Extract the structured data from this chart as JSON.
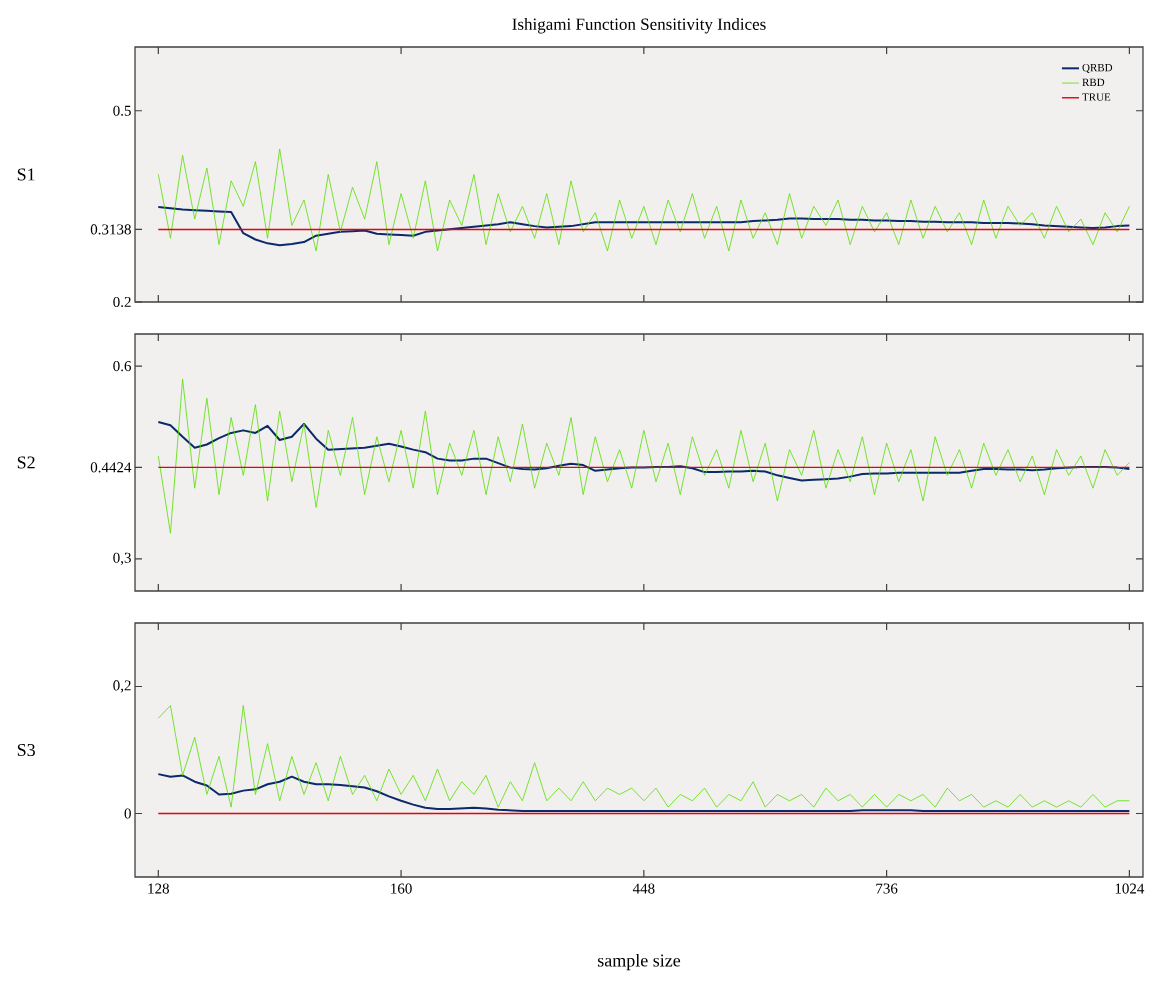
{
  "chart_data": [
    {
      "type": "line",
      "title": "Ishigami Function Sensitivity Indices",
      "ylabel": "S1",
      "categories": [
        "128",
        null,
        null,
        null,
        null,
        null,
        null,
        null,
        null,
        null,
        null,
        null,
        null,
        null,
        null,
        null,
        null,
        null,
        null,
        null,
        "160",
        null,
        null,
        null,
        null,
        null,
        null,
        null,
        null,
        null,
        null,
        null,
        null,
        null,
        null,
        null,
        null,
        null,
        null,
        null,
        "448",
        null,
        null,
        null,
        null,
        null,
        null,
        null,
        null,
        null,
        null,
        null,
        null,
        null,
        null,
        null,
        null,
        null,
        null,
        null,
        "736",
        null,
        null,
        null,
        null,
        null,
        null,
        null,
        null,
        null,
        null,
        null,
        null,
        null,
        null,
        null,
        null,
        null,
        null,
        null,
        "1024"
      ],
      "ylim": [
        0.2,
        0.6
      ],
      "yticks": [
        0.2,
        0.3138,
        0.5
      ],
      "tick_labels": "y",
      "legend": "top right",
      "series": [
        {
          "name": "QRBD",
          "color": "#0b2a6b",
          "values": [
            0.349,
            0.347,
            0.345,
            0.344,
            0.343,
            0.342,
            0.341,
            0.308,
            0.298,
            0.292,
            0.289,
            0.291,
            0.294,
            0.304,
            0.307,
            0.31,
            0.311,
            0.312,
            0.307,
            0.306,
            0.305,
            0.304,
            0.31,
            0.312,
            0.314,
            0.316,
            0.318,
            0.32,
            0.322,
            0.325,
            0.322,
            0.319,
            0.317,
            0.318,
            0.319,
            0.322,
            0.325,
            0.325,
            0.325,
            0.325,
            0.325,
            0.325,
            0.325,
            0.325,
            0.325,
            0.325,
            0.325,
            0.325,
            0.325,
            0.327,
            0.328,
            0.329,
            0.331,
            0.331,
            0.33,
            0.33,
            0.33,
            0.329,
            0.329,
            0.328,
            0.328,
            0.327,
            0.327,
            0.326,
            0.326,
            0.325,
            0.325,
            0.325,
            0.324,
            0.324,
            0.324,
            0.323,
            0.322,
            0.32,
            0.319,
            0.318,
            0.317,
            0.316,
            0.317,
            0.319,
            0.32
          ]
        },
        {
          "name": "RBD",
          "color": "#55e000",
          "values": [
            0.4,
            0.3,
            0.43,
            0.33,
            0.41,
            0.29,
            0.39,
            0.35,
            0.42,
            0.3,
            0.44,
            0.32,
            0.36,
            0.28,
            0.4,
            0.31,
            0.38,
            0.33,
            0.42,
            0.29,
            0.37,
            0.3,
            0.39,
            0.28,
            0.36,
            0.32,
            0.4,
            0.29,
            0.37,
            0.31,
            0.35,
            0.3,
            0.37,
            0.29,
            0.39,
            0.31,
            0.34,
            0.28,
            0.36,
            0.3,
            0.35,
            0.29,
            0.36,
            0.31,
            0.37,
            0.3,
            0.35,
            0.28,
            0.36,
            0.3,
            0.34,
            0.29,
            0.37,
            0.3,
            0.35,
            0.32,
            0.36,
            0.29,
            0.35,
            0.31,
            0.34,
            0.29,
            0.36,
            0.3,
            0.35,
            0.31,
            0.34,
            0.29,
            0.36,
            0.3,
            0.35,
            0.32,
            0.34,
            0.3,
            0.35,
            0.31,
            0.33,
            0.29,
            0.34,
            0.31,
            0.35
          ]
        },
        {
          "name": "TRUE",
          "color": "#e8000b",
          "values": [
            0.3138,
            0.3138,
            0.3138,
            0.3138,
            0.3138,
            0.3138,
            0.3138,
            0.3138,
            0.3138,
            0.3138,
            0.3138,
            0.3138,
            0.3138,
            0.3138,
            0.3138,
            0.3138,
            0.3138,
            0.3138,
            0.3138,
            0.3138,
            0.3138,
            0.3138,
            0.3138,
            0.3138,
            0.3138,
            0.3138,
            0.3138,
            0.3138,
            0.3138,
            0.3138,
            0.3138,
            0.3138,
            0.3138,
            0.3138,
            0.3138,
            0.3138,
            0.3138,
            0.3138,
            0.3138,
            0.3138,
            0.3138,
            0.3138,
            0.3138,
            0.3138,
            0.3138,
            0.3138,
            0.3138,
            0.3138,
            0.3138,
            0.3138,
            0.3138,
            0.3138,
            0.3138,
            0.3138,
            0.3138,
            0.3138,
            0.3138,
            0.3138,
            0.3138,
            0.3138,
            0.3138,
            0.3138,
            0.3138,
            0.3138,
            0.3138,
            0.3138,
            0.3138,
            0.3138,
            0.3138,
            0.3138,
            0.3138,
            0.3138,
            0.3138,
            0.3138,
            0.3138,
            0.3138,
            0.3138,
            0.3138,
            0.3138,
            0.3138,
            0.3138
          ]
        }
      ]
    },
    {
      "type": "line",
      "ylabel": "S2",
      "categories": [
        "128",
        null,
        null,
        null,
        null,
        null,
        null,
        null,
        null,
        null,
        null,
        null,
        null,
        null,
        null,
        null,
        null,
        null,
        null,
        null,
        "160",
        null,
        null,
        null,
        null,
        null,
        null,
        null,
        null,
        null,
        null,
        null,
        null,
        null,
        null,
        null,
        null,
        null,
        null,
        null,
        "448",
        null,
        null,
        null,
        null,
        null,
        null,
        null,
        null,
        null,
        null,
        null,
        null,
        null,
        null,
        null,
        null,
        null,
        null,
        null,
        "736",
        null,
        null,
        null,
        null,
        null,
        null,
        null,
        null,
        null,
        null,
        null,
        null,
        null,
        null,
        null,
        null,
        null,
        null,
        null,
        "1024"
      ],
      "ylim": [
        0.25,
        0.65
      ],
      "yticks": [
        {
          "value": 0.3,
          "label": "0,3"
        },
        0.4424,
        0.6
      ],
      "tick_labels": "y",
      "series": [
        {
          "color": "#0b2a6b",
          "values": [
            0.513,
            0.508,
            0.49,
            0.473,
            0.478,
            0.488,
            0.496,
            0.5,
            0.496,
            0.507,
            0.485,
            0.49,
            0.51,
            0.487,
            0.47,
            0.471,
            0.472,
            0.473,
            0.476,
            0.479,
            0.475,
            0.47,
            0.466,
            0.456,
            0.453,
            0.453,
            0.456,
            0.456,
            0.449,
            0.442,
            0.44,
            0.439,
            0.441,
            0.445,
            0.448,
            0.446,
            0.437,
            0.439,
            0.441,
            0.442,
            0.442,
            0.443,
            0.443,
            0.444,
            0.441,
            0.435,
            0.435,
            0.436,
            0.436,
            0.437,
            0.436,
            0.43,
            0.426,
            0.422,
            0.423,
            0.424,
            0.425,
            0.428,
            0.432,
            0.433,
            0.433,
            0.434,
            0.434,
            0.434,
            0.434,
            0.434,
            0.434,
            0.437,
            0.44,
            0.44,
            0.439,
            0.439,
            0.438,
            0.439,
            0.441,
            0.442,
            0.443,
            0.443,
            0.443,
            0.442,
            0.44
          ]
        },
        {
          "color": "#55e000",
          "values": [
            0.46,
            0.34,
            0.58,
            0.41,
            0.55,
            0.4,
            0.52,
            0.43,
            0.54,
            0.39,
            0.53,
            0.42,
            0.51,
            0.38,
            0.5,
            0.43,
            0.52,
            0.4,
            0.49,
            0.42,
            0.5,
            0.41,
            0.53,
            0.4,
            0.48,
            0.43,
            0.5,
            0.4,
            0.49,
            0.42,
            0.51,
            0.41,
            0.48,
            0.43,
            0.52,
            0.4,
            0.49,
            0.42,
            0.47,
            0.41,
            0.5,
            0.42,
            0.48,
            0.4,
            0.49,
            0.43,
            0.47,
            0.41,
            0.5,
            0.42,
            0.48,
            0.39,
            0.47,
            0.43,
            0.5,
            0.41,
            0.47,
            0.42,
            0.49,
            0.4,
            0.48,
            0.42,
            0.47,
            0.39,
            0.49,
            0.43,
            0.47,
            0.41,
            0.48,
            0.43,
            0.47,
            0.42,
            0.46,
            0.4,
            0.47,
            0.43,
            0.46,
            0.41,
            0.47,
            0.43,
            0.45
          ]
        },
        {
          "color": "#e8000b",
          "values": [
            0.4424,
            0.4424,
            0.4424,
            0.4424,
            0.4424,
            0.4424,
            0.4424,
            0.4424,
            0.4424,
            0.4424,
            0.4424,
            0.4424,
            0.4424,
            0.4424,
            0.4424,
            0.4424,
            0.4424,
            0.4424,
            0.4424,
            0.4424,
            0.4424,
            0.4424,
            0.4424,
            0.4424,
            0.4424,
            0.4424,
            0.4424,
            0.4424,
            0.4424,
            0.4424,
            0.4424,
            0.4424,
            0.4424,
            0.4424,
            0.4424,
            0.4424,
            0.4424,
            0.4424,
            0.4424,
            0.4424,
            0.4424,
            0.4424,
            0.4424,
            0.4424,
            0.4424,
            0.4424,
            0.4424,
            0.4424,
            0.4424,
            0.4424,
            0.4424,
            0.4424,
            0.4424,
            0.4424,
            0.4424,
            0.4424,
            0.4424,
            0.4424,
            0.4424,
            0.4424,
            0.4424,
            0.4424,
            0.4424,
            0.4424,
            0.4424,
            0.4424,
            0.4424,
            0.4424,
            0.4424,
            0.4424,
            0.4424,
            0.4424,
            0.4424,
            0.4424,
            0.4424,
            0.4424,
            0.4424,
            0.4424,
            0.4424,
            0.4424,
            0.4424
          ]
        }
      ]
    },
    {
      "type": "line",
      "ylabel": "S3",
      "xlabel": "sample size",
      "categories": [
        "128",
        null,
        null,
        null,
        null,
        null,
        null,
        null,
        null,
        null,
        null,
        null,
        null,
        null,
        null,
        null,
        null,
        null,
        null,
        null,
        "160",
        null,
        null,
        null,
        null,
        null,
        null,
        null,
        null,
        null,
        null,
        null,
        null,
        null,
        null,
        null,
        null,
        null,
        null,
        null,
        "448",
        null,
        null,
        null,
        null,
        null,
        null,
        null,
        null,
        null,
        null,
        null,
        null,
        null,
        null,
        null,
        null,
        null,
        null,
        null,
        "736",
        null,
        null,
        null,
        null,
        null,
        null,
        null,
        null,
        null,
        null,
        null,
        null,
        null,
        null,
        null,
        null,
        null,
        null,
        null,
        "1024"
      ],
      "ylim": [
        -0.1,
        0.3
      ],
      "yticks": [
        0,
        {
          "value": 0.2,
          "label": "0,2"
        }
      ],
      "series": [
        {
          "color": "#0b2a6b",
          "values": [
            0.062,
            0.058,
            0.06,
            0.05,
            0.044,
            0.03,
            0.031,
            0.036,
            0.038,
            0.046,
            0.05,
            0.058,
            0.05,
            0.046,
            0.046,
            0.045,
            0.043,
            0.041,
            0.035,
            0.027,
            0.02,
            0.014,
            0.009,
            0.007,
            0.007,
            0.008,
            0.009,
            0.008,
            0.006,
            0.005,
            0.004,
            0.004,
            0.004,
            0.004,
            0.004,
            0.004,
            0.004,
            0.004,
            0.004,
            0.004,
            0.004,
            0.004,
            0.004,
            0.004,
            0.004,
            0.004,
            0.004,
            0.004,
            0.004,
            0.004,
            0.004,
            0.004,
            0.004,
            0.004,
            0.004,
            0.004,
            0.004,
            0.004,
            0.005,
            0.005,
            0.005,
            0.005,
            0.005,
            0.004,
            0.004,
            0.004,
            0.004,
            0.004,
            0.004,
            0.004,
            0.004,
            0.004,
            0.004,
            0.004,
            0.004,
            0.004,
            0.004,
            0.004,
            0.004,
            0.004,
            0.004
          ]
        },
        {
          "color": "#55e000",
          "values": [
            0.15,
            0.17,
            0.06,
            0.12,
            0.03,
            0.09,
            0.01,
            0.17,
            0.03,
            0.11,
            0.02,
            0.09,
            0.03,
            0.08,
            0.02,
            0.09,
            0.03,
            0.06,
            0.02,
            0.07,
            0.03,
            0.06,
            0.02,
            0.07,
            0.02,
            0.05,
            0.03,
            0.06,
            0.01,
            0.05,
            0.02,
            0.08,
            0.02,
            0.04,
            0.02,
            0.05,
            0.02,
            0.04,
            0.03,
            0.04,
            0.02,
            0.04,
            0.01,
            0.03,
            0.02,
            0.04,
            0.01,
            0.03,
            0.02,
            0.05,
            0.01,
            0.03,
            0.02,
            0.03,
            0.01,
            0.04,
            0.02,
            0.03,
            0.01,
            0.03,
            0.01,
            0.03,
            0.02,
            0.03,
            0.01,
            0.04,
            0.02,
            0.03,
            0.01,
            0.02,
            0.01,
            0.03,
            0.01,
            0.02,
            0.01,
            0.02,
            0.01,
            0.03,
            0.01,
            0.02,
            0.02
          ]
        },
        {
          "color": "#e8000b",
          "values": [
            0,
            0,
            0,
            0,
            0,
            0,
            0,
            0,
            0,
            0,
            0,
            0,
            0,
            0,
            0,
            0,
            0,
            0,
            0,
            0,
            0,
            0,
            0,
            0,
            0,
            0,
            0,
            0,
            0,
            0,
            0,
            0,
            0,
            0,
            0,
            0,
            0,
            0,
            0,
            0,
            0,
            0,
            0,
            0,
            0,
            0,
            0,
            0,
            0,
            0,
            0,
            0,
            0,
            0,
            0,
            0,
            0,
            0,
            0,
            0,
            0,
            0,
            0,
            0,
            0,
            0,
            0,
            0,
            0,
            0,
            0,
            0,
            0,
            0,
            0,
            0,
            0,
            0,
            0,
            0,
            0
          ]
        }
      ]
    }
  ]
}
